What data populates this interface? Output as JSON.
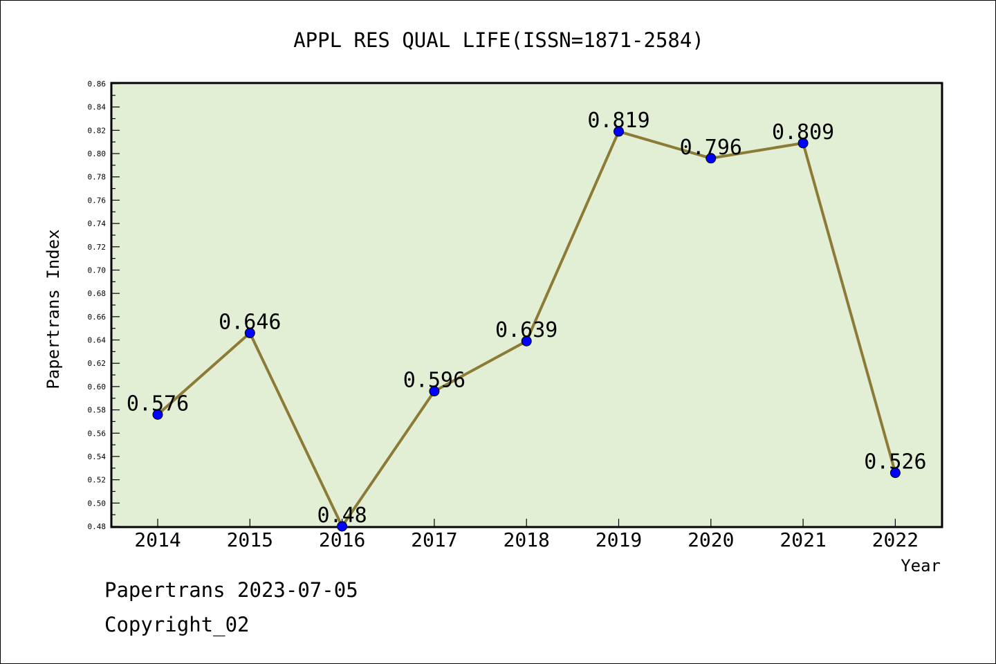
{
  "chart_data": {
    "type": "line",
    "title": "APPL RES QUAL LIFE(ISSN=1871-2584)",
    "xlabel": "Year",
    "ylabel": "Papertrans Index",
    "categories": [
      "2014",
      "2015",
      "2016",
      "2017",
      "2018",
      "2019",
      "2020",
      "2021",
      "2022"
    ],
    "series": [
      {
        "values": [
          0.576,
          0.646,
          0.48,
          0.596,
          0.639,
          0.819,
          0.796,
          0.809,
          0.526
        ],
        "labels": [
          "0.576",
          "0.646",
          "0.48",
          "0.596",
          "0.639",
          "0.819",
          "0.796",
          "0.809",
          "0.526"
        ]
      }
    ],
    "ylim": [
      0.48,
      0.86
    ],
    "yticks": [
      "0.48",
      "0.50",
      "0.52",
      "0.54",
      "0.56",
      "0.58",
      "0.60",
      "0.62",
      "0.64",
      "0.66",
      "0.68",
      "0.70",
      "0.72",
      "0.74",
      "0.76",
      "0.78",
      "0.80",
      "0.82",
      "0.84",
      "0.86"
    ],
    "grid": false,
    "colors": {
      "plot_background": "#e2efd4",
      "line": "#8b7b36",
      "marker": "#0000ff"
    }
  },
  "footer": {
    "date_line": "Papertrans 2023-07-05",
    "copyright_line": "Copyright_02"
  }
}
